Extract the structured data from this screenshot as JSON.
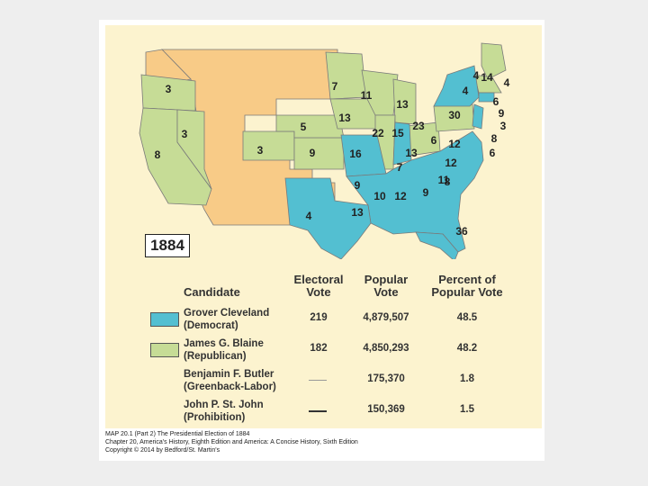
{
  "colors": {
    "democrat": "#53bfd1",
    "republican": "#c6dc96",
    "territory": "#f8cb87",
    "panel": "#fcf3cf"
  },
  "map": {
    "year": "1884",
    "labels": [
      "3",
      "3",
      "8",
      "5",
      "3",
      "9",
      "7",
      "11",
      "13",
      "13",
      "22",
      "15",
      "16",
      "13",
      "23",
      "30",
      "6",
      "12",
      "12",
      "11",
      "7",
      "9",
      "10",
      "12",
      "9",
      "8",
      "13",
      "4",
      "36",
      "4",
      "4",
      "14",
      "4",
      "6",
      "9",
      "3",
      "8",
      "6"
    ]
  },
  "legend": {
    "headers": {
      "candidate": "Candidate",
      "electoral_line1": "Electoral",
      "electoral_line2": "Vote",
      "popular_line1": "Popular",
      "popular_line2": "Vote",
      "percent_line1": "Percent of",
      "percent_line2": "Popular Vote"
    },
    "rows": [
      {
        "name": "Grover Cleveland",
        "party": "(Democrat)",
        "electoral": "219",
        "popular": "4,879,507",
        "percent": "48.5"
      },
      {
        "name": "James G. Blaine",
        "party": "(Republican)",
        "electoral": "182",
        "popular": "4,850,293",
        "percent": "48.2"
      },
      {
        "name": "Benjamin F. Butler",
        "party": "(Greenback-Labor)",
        "electoral": "—",
        "popular": "175,370",
        "percent": "1.8"
      },
      {
        "name": "John P. St. John",
        "party": "(Prohibition)",
        "electoral": "—",
        "popular": "150,369",
        "percent": "1.5"
      }
    ]
  },
  "caption": {
    "line1": "MAP 20.1 (Part 2) The Presidential Election of 1884",
    "line2": "Chapter 20, America's History, Eighth Edition and America: A Concise History, Sixth Edition",
    "line3": "Copyright © 2014 by Bedford/St. Martin's"
  }
}
